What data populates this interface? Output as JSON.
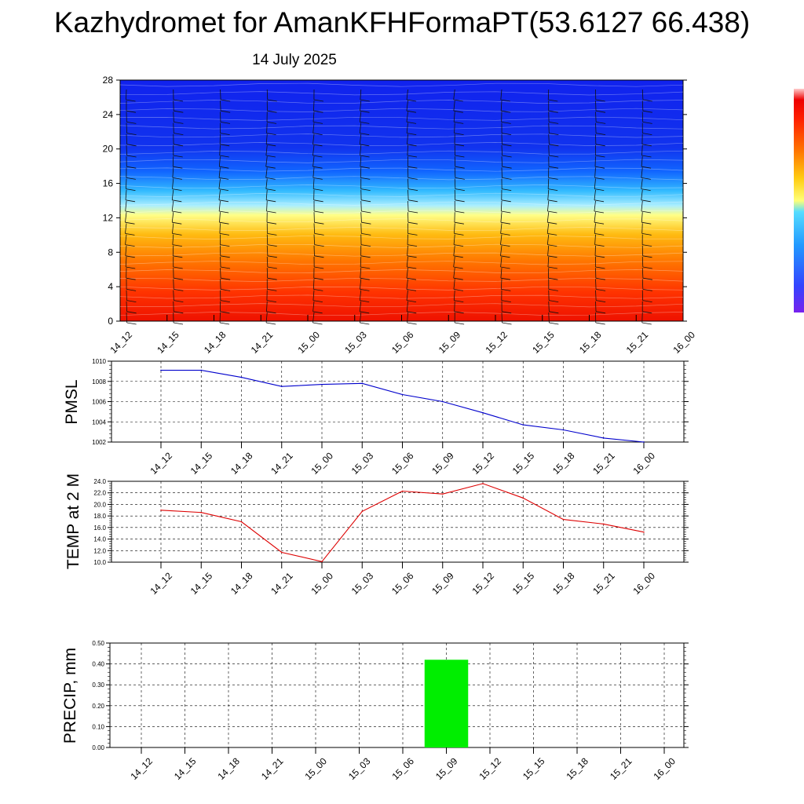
{
  "header": {
    "title": "Kazhydromet for AmanKFHFormaPT(53.6127 66.438)",
    "subtitle": "14 July 2025"
  },
  "colors": {
    "pmsl_line": "#0000cc",
    "temp_line": "#dd0000",
    "precip_bar": "#00ee00",
    "grid": "#000000"
  },
  "chart_data": [
    {
      "type": "heatmap",
      "name_hint": "cross-section",
      "x": [
        "14_12",
        "14_15",
        "14_18",
        "14_21",
        "15_00",
        "15_03",
        "15_06",
        "15_09",
        "15_12",
        "15_15",
        "15_18",
        "15_21",
        "16_00"
      ],
      "y_ticks": [
        0,
        4,
        8,
        12,
        16,
        20,
        24,
        28
      ],
      "ylim": [
        0,
        28
      ],
      "overlay": "wind-barbs",
      "colorbar": "rainbow (purple-blue-cyan-yellow-red)"
    },
    {
      "type": "line",
      "ylabel": "PMSL",
      "x": [
        "14_12",
        "14_15",
        "14_18",
        "14_21",
        "15_00",
        "15_03",
        "15_06",
        "15_09",
        "15_12",
        "15_15",
        "15_18",
        "15_21",
        "16_00"
      ],
      "values": [
        1009.1,
        1009.1,
        1008.4,
        1007.5,
        1007.7,
        1007.8,
        1006.7,
        1006.0,
        1004.9,
        1003.7,
        1003.2,
        1002.4,
        1002.0
      ],
      "ylim": [
        1002,
        1010
      ],
      "y_ticks": [
        "1002",
        "1004",
        "1006",
        "1008",
        "1010"
      ],
      "grid": true
    },
    {
      "type": "line",
      "ylabel": "TEMP at 2 M",
      "x": [
        "14_12",
        "14_15",
        "14_18",
        "14_21",
        "15_00",
        "15_03",
        "15_06",
        "15_09",
        "15_12",
        "15_15",
        "15_18",
        "15_21",
        "16_00"
      ],
      "values": [
        19.0,
        18.6,
        17.0,
        11.7,
        10.1,
        18.8,
        22.3,
        21.8,
        23.6,
        21.1,
        17.4,
        16.6,
        15.2
      ],
      "ylim": [
        10,
        24
      ],
      "y_ticks": [
        "10.0",
        "12.0",
        "14.0",
        "16.0",
        "18.0",
        "20.0",
        "22.0",
        "24.0"
      ],
      "grid": true
    },
    {
      "type": "bar",
      "ylabel": "PRECIP, mm",
      "x": [
        "14_12",
        "14_15",
        "14_18",
        "14_21",
        "15_00",
        "15_03",
        "15_06",
        "15_09",
        "15_12",
        "15_15",
        "15_18",
        "15_21",
        "16_00"
      ],
      "values": [
        0,
        0,
        0,
        0,
        0,
        0,
        0,
        0.42,
        0,
        0,
        0,
        0,
        0
      ],
      "ylim": [
        0,
        0.5
      ],
      "y_ticks": [
        "0.00",
        "0.10",
        "0.20",
        "0.30",
        "0.40",
        "0.50"
      ],
      "grid": true
    }
  ]
}
